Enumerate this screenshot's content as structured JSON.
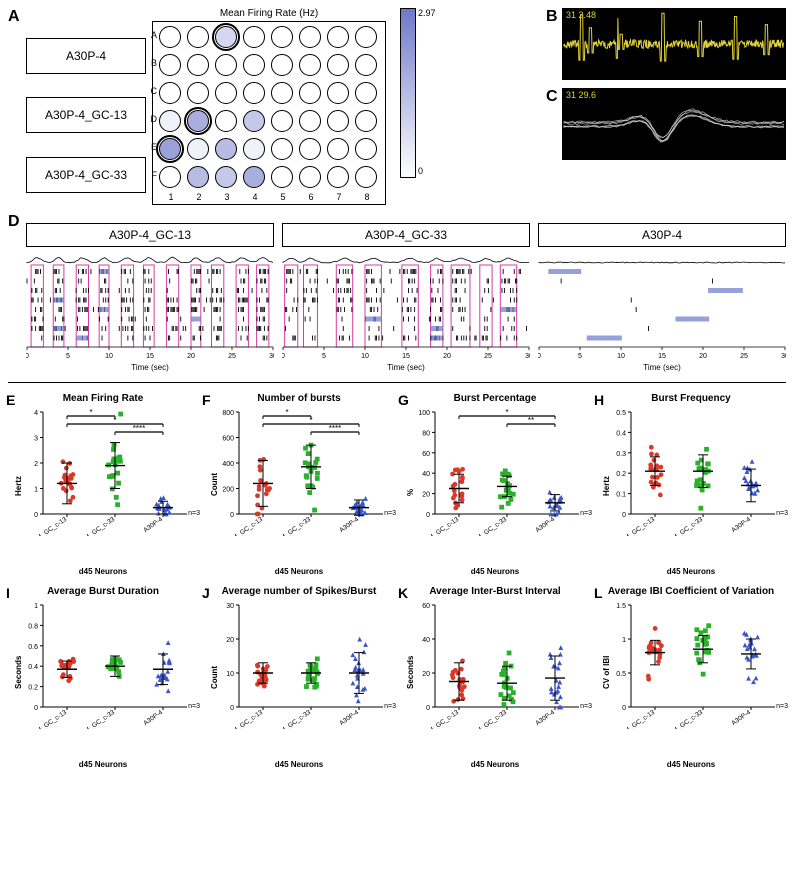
{
  "panelA": {
    "letter": "A",
    "title": "Mean Firing Rate (Hz)",
    "labels": [
      "A30P-4",
      "A30P-4_GC-13",
      "A30P-4_GC-33"
    ],
    "rows": [
      "A",
      "B",
      "C",
      "D",
      "E",
      "F"
    ],
    "cols": [
      "1",
      "2",
      "3",
      "4",
      "5",
      "6",
      "7",
      "8"
    ],
    "max_value": 2.97,
    "min_value": 0,
    "gradient_top": "#6f78c7",
    "gradient_bottom": "#ffffff",
    "intensities": [
      [
        0,
        0,
        0.3,
        0,
        0,
        0,
        0,
        0
      ],
      [
        0,
        0,
        0,
        0,
        0,
        0,
        0,
        0
      ],
      [
        0,
        0,
        0,
        0,
        0,
        0,
        0,
        0
      ],
      [
        0.1,
        0.6,
        0,
        0.4,
        0,
        0,
        0,
        0
      ],
      [
        0.7,
        0.1,
        0.5,
        0.1,
        0,
        0,
        0,
        0
      ],
      [
        0,
        0.5,
        0.4,
        0.6,
        0,
        0,
        0,
        0
      ]
    ],
    "selected": [
      [
        0,
        2
      ],
      [
        3,
        1
      ],
      [
        4,
        0
      ]
    ]
  },
  "panelB": {
    "letter": "B",
    "trace_color": "#e0d23a",
    "label": "31  2.48",
    "label_color": "#e0d23a",
    "spikes_x": [
      0.08,
      0.12,
      0.25,
      0.26,
      0.45,
      0.62,
      0.78,
      0.92
    ],
    "spike_amp": [
      0.9,
      0.5,
      0.8,
      0.3,
      0.95,
      0.7,
      0.85,
      0.6
    ],
    "noise_level": 0.12
  },
  "panelC": {
    "letter": "C",
    "trace_color": "#dddddd",
    "label": "31  29.6",
    "label_color": "#e0d23a",
    "n_waveforms": 6
  },
  "panelD": {
    "letter": "D",
    "time_label": "Time (sec)",
    "xlim": [
      0,
      30
    ],
    "xticks": [
      0,
      5,
      10,
      15,
      20,
      25,
      30
    ],
    "burst_color": "#d63ca3",
    "spike_color": "#000000",
    "band_color": "#6a79c9",
    "n_rows": 8,
    "panels": [
      {
        "title": "A30P-4_GC-13",
        "burst_windows": [
          [
            0.5,
            2
          ],
          [
            3.2,
            4.5
          ],
          [
            6,
            7.5
          ],
          [
            8.8,
            10
          ],
          [
            11.5,
            13
          ],
          [
            14.2,
            15.5
          ],
          [
            17,
            18.5
          ],
          [
            20,
            21.2
          ],
          [
            22.5,
            24
          ],
          [
            25.5,
            27
          ],
          [
            28,
            29.5
          ]
        ],
        "density": 0.7
      },
      {
        "title": "A30P-4_GC-33",
        "burst_windows": [
          [
            0.2,
            1.8
          ],
          [
            2.5,
            4.2
          ],
          [
            6.5,
            8.5
          ],
          [
            10,
            12
          ],
          [
            14.5,
            16.5
          ],
          [
            18,
            19.5
          ],
          [
            20.5,
            22.8
          ],
          [
            24,
            25.5
          ],
          [
            26.5,
            28.5
          ]
        ],
        "density": 0.6
      },
      {
        "title": "A30P-4",
        "burst_windows": [],
        "density": 0.15
      }
    ]
  },
  "charts_common": {
    "groups": [
      "A30P-4_GC_c-13",
      "A30P-4_GC_c-33",
      "A30P-4"
    ],
    "group_colors": [
      "#d8392a",
      "#2bb02b",
      "#3a55c9"
    ],
    "group_markers": [
      "circle",
      "square",
      "triangle"
    ],
    "xlabel": "d45 Neurons",
    "n_label": "n=3",
    "error_color": "#000000",
    "n_points_per_group": 20,
    "jitter": 0.28
  },
  "charts": [
    {
      "id": "E",
      "title": "Mean Firing Rate",
      "ytitle": "Hertz",
      "ylim": [
        0,
        4
      ],
      "yticks": [
        0,
        1,
        2,
        3,
        4
      ],
      "means": [
        1.2,
        1.9,
        0.25
      ],
      "sd": [
        0.8,
        0.9,
        0.25
      ],
      "sig": [
        [
          "A30P-4_GC_c-13",
          "A30P-4_GC_c-33",
          "*"
        ],
        [
          "A30P-4_GC_c-13",
          "A30P-4",
          "*"
        ],
        [
          "A30P-4_GC_c-33",
          "A30P-4",
          "****"
        ]
      ]
    },
    {
      "id": "F",
      "title": "Number of bursts",
      "ytitle": "Count",
      "ylim": [
        0,
        800
      ],
      "yticks": [
        0,
        200,
        400,
        600,
        800
      ],
      "means": [
        240,
        370,
        50
      ],
      "sd": [
        180,
        170,
        60
      ],
      "sig": [
        [
          "A30P-4_GC_c-13",
          "A30P-4_GC_c-33",
          "*"
        ],
        [
          "A30P-4_GC_c-13",
          "A30P-4",
          "*"
        ],
        [
          "A30P-4_GC_c-33",
          "A30P-4",
          "****"
        ]
      ]
    },
    {
      "id": "G",
      "title": "Burst Percentage",
      "ytitle": "%",
      "ylim": [
        0,
        100
      ],
      "yticks": [
        0,
        20,
        40,
        60,
        80,
        100
      ],
      "means": [
        25,
        27,
        11
      ],
      "sd": [
        14,
        10,
        8
      ],
      "sig": [
        [
          "A30P-4_GC_c-13",
          "A30P-4",
          "*"
        ],
        [
          "A30P-4_GC_c-33",
          "A30P-4",
          "**"
        ]
      ]
    },
    {
      "id": "H",
      "title": "Burst Frequency",
      "ytitle": "Hertz",
      "ylim": [
        0,
        0.5
      ],
      "yticks": [
        0,
        0.1,
        0.2,
        0.3,
        0.4,
        0.5
      ],
      "means": [
        0.21,
        0.21,
        0.14
      ],
      "sd": [
        0.07,
        0.08,
        0.08
      ],
      "sig": []
    },
    {
      "id": "I",
      "title": "Average Burst Duration",
      "ytitle": "Seconds",
      "ylim": [
        0,
        1.0
      ],
      "yticks": [
        0,
        0.2,
        0.4,
        0.6,
        0.8,
        1.0
      ],
      "means": [
        0.37,
        0.4,
        0.37
      ],
      "sd": [
        0.08,
        0.1,
        0.15
      ],
      "sig": []
    },
    {
      "id": "J",
      "title": "Average number of Spikes/Burst",
      "ytitle": "Count",
      "ylim": [
        0,
        30
      ],
      "yticks": [
        0,
        10,
        20,
        30
      ],
      "means": [
        10,
        10,
        10
      ],
      "sd": [
        3,
        3,
        6
      ],
      "sig": []
    },
    {
      "id": "K",
      "title": "Average Inter-Burst Interval",
      "ytitle": "Seconds",
      "ylim": [
        0,
        60
      ],
      "yticks": [
        0,
        20,
        40,
        60
      ],
      "means": [
        15,
        14,
        17
      ],
      "sd": [
        11,
        10,
        13
      ],
      "sig": []
    },
    {
      "id": "L",
      "title": "Average IBI Coefficient of Variation",
      "ytitle": "CV of IBI",
      "ylim": [
        0,
        1.5
      ],
      "yticks": [
        0,
        0.5,
        1.0,
        1.5
      ],
      "means": [
        0.8,
        0.85,
        0.78
      ],
      "sd": [
        0.18,
        0.2,
        0.22
      ],
      "sig": []
    }
  ]
}
